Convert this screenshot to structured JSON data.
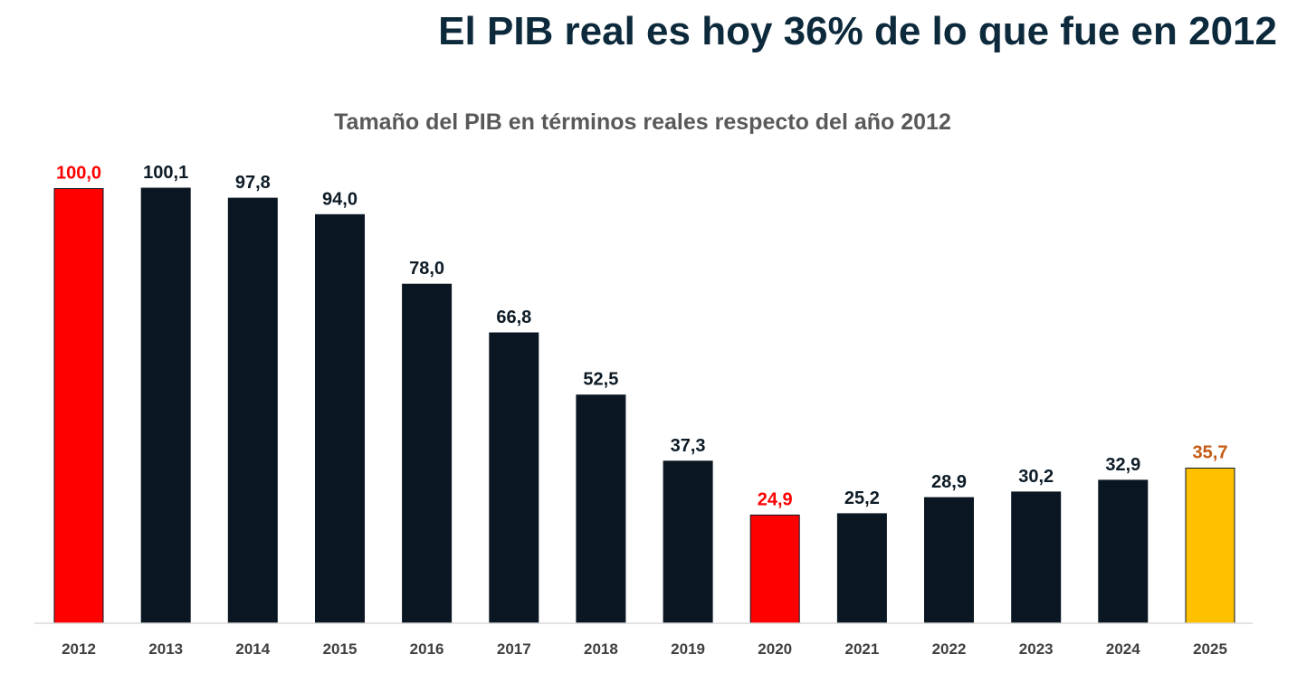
{
  "headline": "El PIB real es hoy 36% de lo que fue en 2012",
  "colors": {
    "default_bar": "#0a1622",
    "highlight_red": "#ff0000",
    "highlight_yellow": "#ffc000",
    "label_default": "#0d1b26",
    "label_red": "#ff0000",
    "label_orange": "#c55a11",
    "axis_line": "#d9d9d9",
    "tick_label": "#404040",
    "subtitle": "#595959"
  },
  "chart_data": {
    "type": "bar",
    "title": "Tamaño del PIB en términos reales respecto del año 2012",
    "xlabel": "",
    "ylabel": "",
    "ylim": [
      0,
      100.1
    ],
    "grid": false,
    "legend": "none",
    "categories": [
      "2012",
      "2013",
      "2014",
      "2015",
      "2016",
      "2017",
      "2018",
      "2019",
      "2020",
      "2021",
      "2022",
      "2023",
      "2024",
      "2025"
    ],
    "values": [
      100.0,
      100.1,
      97.8,
      94.0,
      78.0,
      66.8,
      52.5,
      37.3,
      24.9,
      25.2,
      28.9,
      30.2,
      32.9,
      35.7
    ],
    "data_labels": [
      "100,0",
      "100,1",
      "97,8",
      "94,0",
      "78,0",
      "66,8",
      "52,5",
      "37,3",
      "24,9",
      "25,2",
      "28,9",
      "30,2",
      "32,9",
      "35,7"
    ],
    "bar_colors": [
      "#ff0000",
      "#0a1622",
      "#0a1622",
      "#0a1622",
      "#0a1622",
      "#0a1622",
      "#0a1622",
      "#0a1622",
      "#ff0000",
      "#0a1622",
      "#0a1622",
      "#0a1622",
      "#0a1622",
      "#ffc000"
    ],
    "label_colors": [
      "#ff0000",
      "#0d1b26",
      "#0d1b26",
      "#0d1b26",
      "#0d1b26",
      "#0d1b26",
      "#0d1b26",
      "#0d1b26",
      "#ff0000",
      "#0d1b26",
      "#0d1b26",
      "#0d1b26",
      "#0d1b26",
      "#c55a11"
    ]
  }
}
